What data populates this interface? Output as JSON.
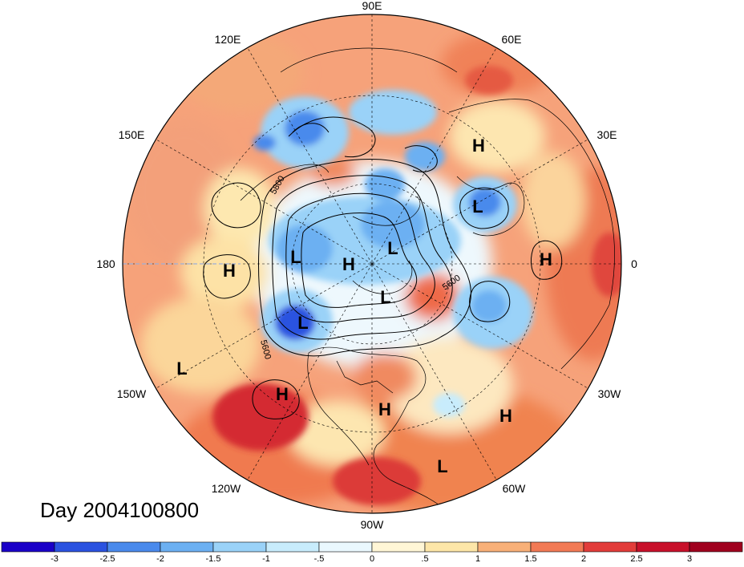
{
  "title": "Day 2004100800",
  "longitude_labels": {
    "top": "90E",
    "top_left": "120E",
    "top_right": "60E",
    "upper_left": "150E",
    "upper_right": "30E",
    "left": "180",
    "right": "0",
    "lower_left": "150W",
    "lower_right": "30W",
    "bottom_left": "120W",
    "bottom_right": "60W",
    "bottom": "90W"
  },
  "pressure_centers": [
    {
      "type": "H",
      "label": "H"
    },
    {
      "type": "L",
      "label": "L"
    },
    {
      "type": "H",
      "label": "H"
    },
    {
      "type": "L",
      "label": "L"
    },
    {
      "type": "L",
      "label": "L"
    },
    {
      "type": "H",
      "label": "H"
    },
    {
      "type": "H",
      "label": "H"
    },
    {
      "type": "L",
      "label": "L"
    },
    {
      "type": "L",
      "label": "L"
    },
    {
      "type": "L",
      "label": "L"
    },
    {
      "type": "H",
      "label": "H"
    },
    {
      "type": "H",
      "label": "H"
    },
    {
      "type": "H",
      "label": "H"
    },
    {
      "type": "L",
      "label": "L"
    }
  ],
  "contour_labels": [
    "5800",
    "5600",
    "5600"
  ],
  "colorbar": {
    "ticks": [
      "-3",
      "-2.5",
      "-2",
      "-1.5",
      "-1",
      "-.5",
      "0",
      ".5",
      "1",
      "1.5",
      "2",
      "2.5",
      "3"
    ],
    "colors": [
      "#1a00c8",
      "#2a52e0",
      "#4a8aec",
      "#6cb0f2",
      "#9ad2f8",
      "#c8ecfc",
      "#eaf8fe",
      "#fff6d6",
      "#fde6a8",
      "#f8b078",
      "#f27a55",
      "#e23c3a",
      "#c8102a",
      "#a0001e"
    ]
  }
}
